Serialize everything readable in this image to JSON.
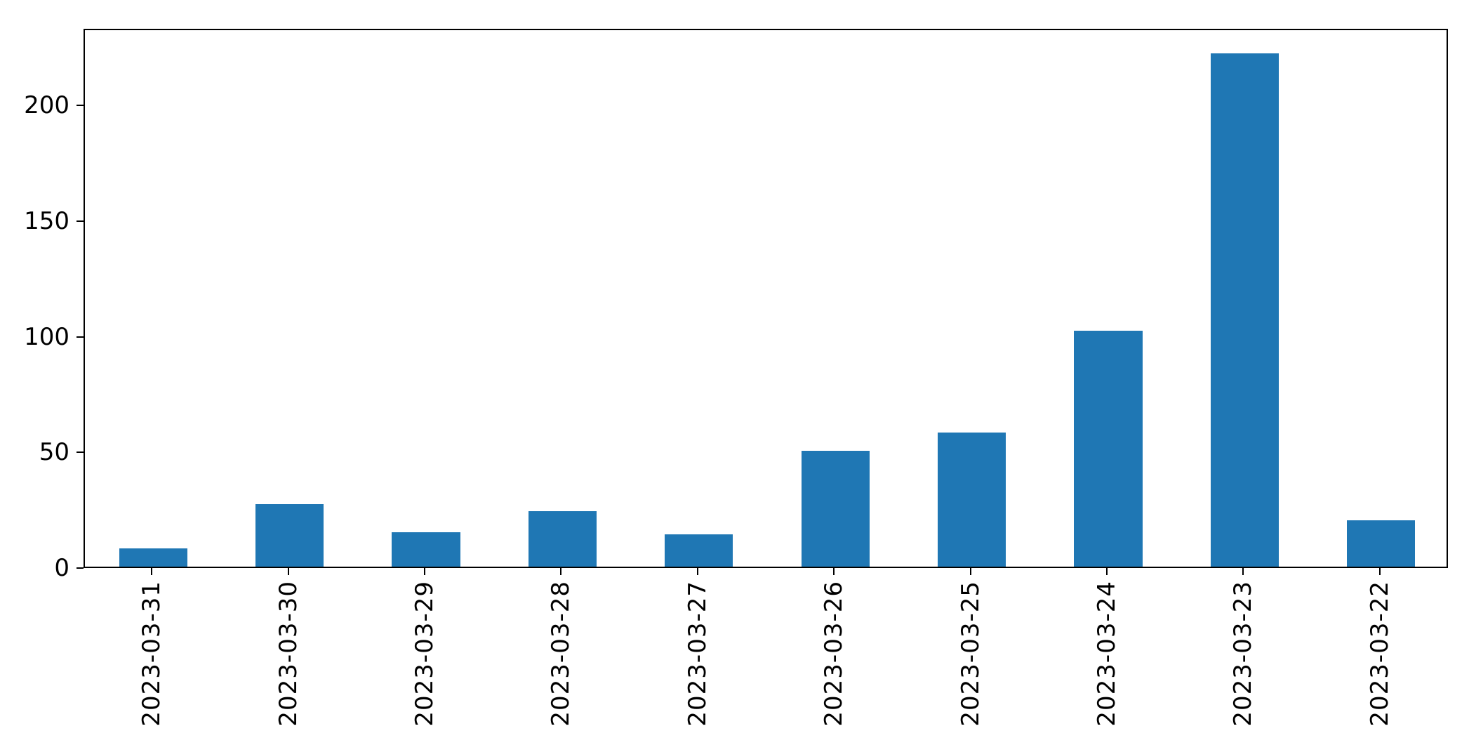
{
  "figure": {
    "background": "#ffffff"
  },
  "chart_data": {
    "type": "bar",
    "title": "",
    "xlabel": "",
    "ylabel": "",
    "categories": [
      "2023-03-31",
      "2023-03-30",
      "2023-03-29",
      "2023-03-28",
      "2023-03-27",
      "2023-03-26",
      "2023-03-25",
      "2023-03-24",
      "2023-03-23",
      "2023-03-22"
    ],
    "values": [
      8,
      27,
      15,
      24,
      14,
      50,
      58,
      102,
      222,
      20
    ],
    "yticks": [
      0,
      50,
      100,
      150,
      200
    ],
    "ytick_labels": [
      "0",
      "50",
      "100",
      "150",
      "200"
    ],
    "ylim": [
      0,
      233.1
    ],
    "x_tick_rotation_deg": 90,
    "grid": false,
    "legend": null,
    "bar_color": "#1f77b4",
    "axis_color": "#000000",
    "tick_label_color": "#000000",
    "bar_width_fraction": 0.5
  }
}
